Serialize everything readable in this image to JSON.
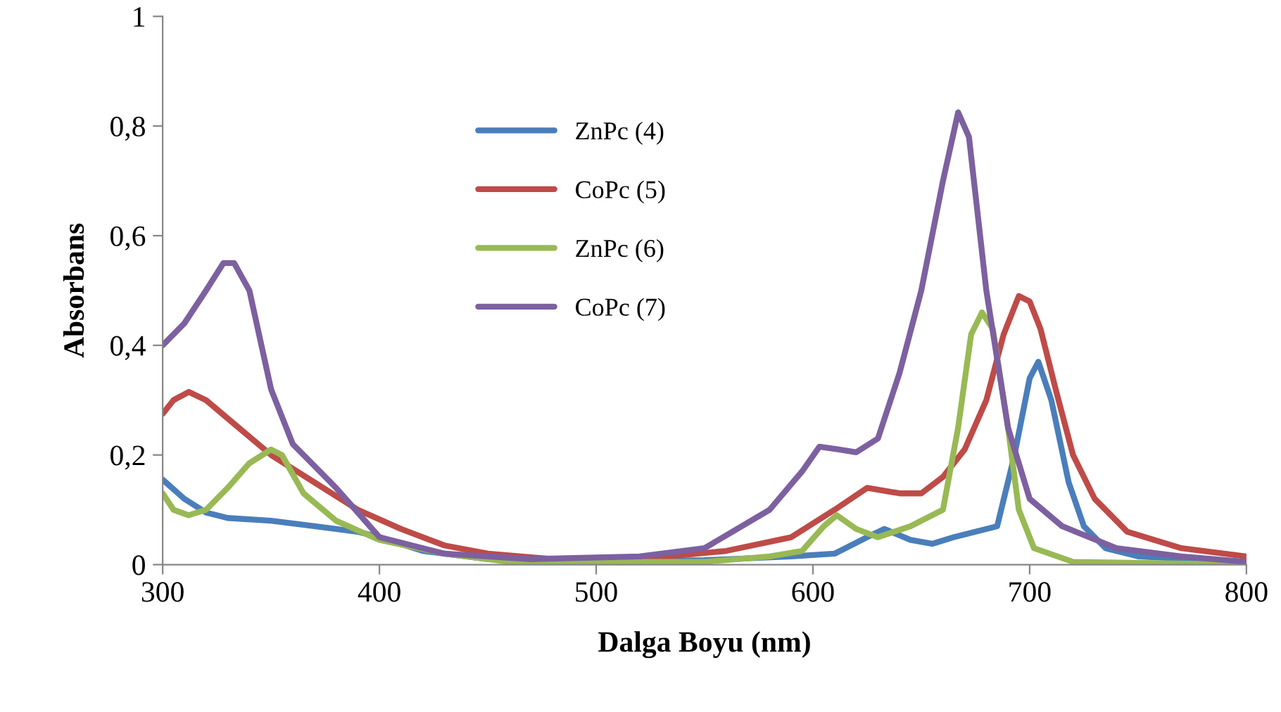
{
  "chart_data": {
    "type": "line",
    "xlabel": "Dalga Boyu (nm)",
    "ylabel": "Absorbans",
    "xlim": [
      300,
      800
    ],
    "ylim": [
      0,
      1
    ],
    "xticks": [
      300,
      400,
      500,
      600,
      700,
      800
    ],
    "yticks": [
      0,
      {
        "value": 0.2,
        "label": "0,2"
      },
      {
        "value": 0.4,
        "label": "0,4"
      },
      {
        "value": 0.6,
        "label": "0,6"
      },
      {
        "value": 0.8,
        "label": "0,8"
      },
      1
    ],
    "grid": false,
    "legend": "top left",
    "marker": "none",
    "line_style": "solid",
    "series": [
      {
        "name": "ZnPc (4)",
        "color": "#4a7ebb",
        "x": [
          300,
          310,
          320,
          330,
          350,
          370,
          390,
          400,
          420,
          450,
          500,
          550,
          590,
          610,
          625,
          633,
          645,
          655,
          665,
          675,
          685,
          693,
          700,
          704,
          710,
          718,
          725,
          735,
          750,
          800
        ],
        "values": [
          0.155,
          0.12,
          0.095,
          0.085,
          0.08,
          0.07,
          0.06,
          0.05,
          0.025,
          0.01,
          0.005,
          0.008,
          0.015,
          0.02,
          0.05,
          0.065,
          0.045,
          0.038,
          0.05,
          0.06,
          0.07,
          0.2,
          0.34,
          0.37,
          0.3,
          0.15,
          0.07,
          0.03,
          0.015,
          0.005
        ]
      },
      {
        "name": "CoPc (5)",
        "color": "#be4b48",
        "x": [
          300,
          305,
          312,
          320,
          335,
          350,
          370,
          390,
          410,
          430,
          450,
          480,
          520,
          560,
          590,
          610,
          625,
          640,
          650,
          660,
          670,
          680,
          688,
          695,
          700,
          705,
          712,
          720,
          730,
          745,
          770,
          800
        ],
        "values": [
          0.275,
          0.3,
          0.315,
          0.3,
          0.25,
          0.2,
          0.15,
          0.1,
          0.065,
          0.035,
          0.02,
          0.01,
          0.01,
          0.025,
          0.05,
          0.1,
          0.14,
          0.13,
          0.13,
          0.16,
          0.21,
          0.3,
          0.42,
          0.49,
          0.48,
          0.43,
          0.32,
          0.2,
          0.12,
          0.06,
          0.03,
          0.015
        ]
      },
      {
        "name": "ZnPc (6)",
        "color": "#98b954",
        "x": [
          300,
          305,
          312,
          320,
          330,
          340,
          350,
          355,
          365,
          380,
          400,
          430,
          460,
          500,
          550,
          580,
          595,
          605,
          611,
          620,
          630,
          645,
          660,
          667,
          673,
          678,
          683,
          690,
          695,
          702,
          720,
          800
        ],
        "values": [
          0.13,
          0.1,
          0.09,
          0.1,
          0.14,
          0.185,
          0.21,
          0.2,
          0.13,
          0.08,
          0.045,
          0.02,
          0.005,
          0.005,
          0.005,
          0.015,
          0.025,
          0.07,
          0.09,
          0.065,
          0.05,
          0.07,
          0.1,
          0.25,
          0.42,
          0.46,
          0.43,
          0.25,
          0.1,
          0.03,
          0.005,
          0
        ]
      },
      {
        "name": "CoPc (7)",
        "color": "#7d60a0",
        "x": [
          300,
          310,
          320,
          328,
          333,
          340,
          350,
          360,
          380,
          400,
          430,
          470,
          520,
          550,
          580,
          595,
          603,
          612,
          620,
          630,
          640,
          650,
          660,
          667,
          672,
          680,
          690,
          700,
          715,
          740,
          770,
          800
        ],
        "values": [
          0.4,
          0.44,
          0.5,
          0.55,
          0.55,
          0.5,
          0.32,
          0.22,
          0.14,
          0.05,
          0.02,
          0.01,
          0.015,
          0.03,
          0.1,
          0.17,
          0.215,
          0.21,
          0.205,
          0.23,
          0.35,
          0.5,
          0.7,
          0.825,
          0.78,
          0.5,
          0.25,
          0.12,
          0.07,
          0.03,
          0.015,
          0.005
        ]
      }
    ]
  }
}
